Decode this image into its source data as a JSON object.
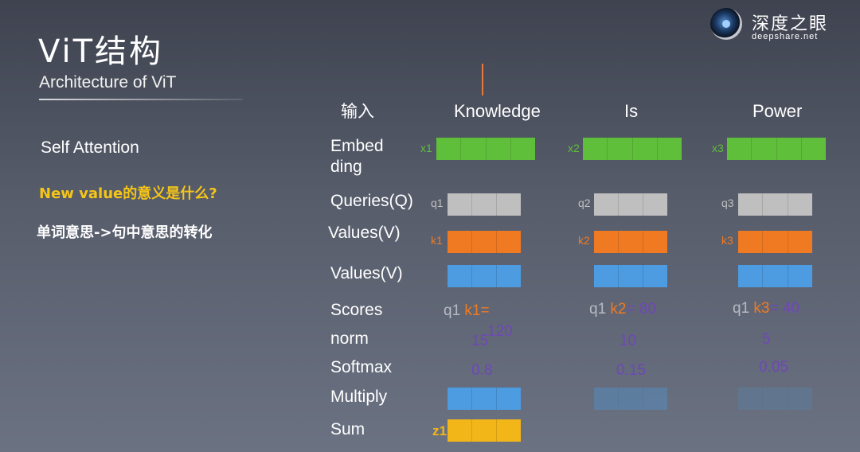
{
  "header": {
    "title": "ViT结构",
    "subtitle": "Architecture of ViT"
  },
  "brand": {
    "name_cn": "深度之眼",
    "name_en": "deepshare.net"
  },
  "left": {
    "section": "Self Attention",
    "question": "New value的意义是什么?",
    "answer": "单词意思->句中意思的转化"
  },
  "rows": {
    "input": "输入",
    "embedding": "Embed\nding",
    "queries": "Queries(Q)",
    "values1": "Values(V)",
    "values2": "Values(V)",
    "scores": "Scores",
    "norm": "norm",
    "softmax": "Softmax",
    "multiply": "Multiply",
    "sum": "Sum"
  },
  "columns": [
    {
      "word": "Knowledge",
      "x_label": "x1",
      "q_label": "q1",
      "k_label": "k1",
      "score_q": "q1",
      "score_k": "k1",
      "score_eq": "=",
      "score_val": "120",
      "norm": "15",
      "softmax": "0.8"
    },
    {
      "word": "Is",
      "x_label": "x2",
      "q_label": "q2",
      "k_label": "k2",
      "score_q": "q1",
      "score_k": "k2",
      "score_eq": "= 80",
      "score_val": "",
      "norm": "10",
      "softmax": "0.15"
    },
    {
      "word": "Power",
      "x_label": "x3",
      "q_label": "q3",
      "k_label": "k3",
      "score_q": "q1",
      "score_k": "k3",
      "score_eq": "= 40",
      "score_val": "",
      "norm": "5",
      "softmax": "0.05"
    }
  ],
  "sum_label": "z1",
  "colors": {
    "embedding": "#5fbf3a",
    "query": "#bfbfbf",
    "key": "#f07a22",
    "value": "#4d9be0",
    "sum": "#f2b619",
    "question_text": "#f5c518",
    "score_text": "#6f47b8"
  }
}
